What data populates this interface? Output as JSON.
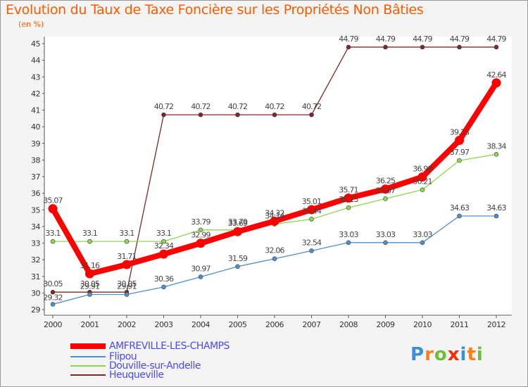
{
  "chart_data": {
    "type": "line",
    "title": "Evolution du Taux de Taxe Foncière sur les Propriétés Non Bâties",
    "ylabel": "(en %)",
    "xlabel": "",
    "x": [
      "2000",
      "2001",
      "2002",
      "2003",
      "2004",
      "2005",
      "2006",
      "2007",
      "2008",
      "2009",
      "2010",
      "2011",
      "2012"
    ],
    "y_ticks": [
      "29",
      "30",
      "31",
      "32",
      "33",
      "34",
      "35",
      "36",
      "37",
      "38",
      "39",
      "40",
      "41",
      "42",
      "43",
      "44",
      "45"
    ],
    "ylim": [
      29,
      45
    ],
    "grid": false,
    "legend_position": "bottom-left",
    "series": [
      {
        "name": "AMFREVILLE-LES-CHAMPS",
        "color": "#ff0000",
        "values": [
          35.07,
          31.16,
          31.71,
          32.34,
          32.99,
          33.69,
          34.32,
          35.01,
          35.71,
          36.25,
          36.98,
          39.18,
          42.64
        ],
        "labels": [
          "35.07",
          "31.16",
          "31.71",
          "32.34",
          "32.99",
          "33.69",
          "34.32",
          "35.01",
          "35.71",
          "36.25",
          "36.98",
          "39.18",
          "42.64"
        ]
      },
      {
        "name": "Flipou",
        "color": "#4f90c9",
        "values": [
          29.32,
          29.91,
          29.91,
          30.36,
          30.97,
          31.59,
          32.06,
          32.54,
          33.03,
          33.03,
          33.03,
          34.63,
          34.63
        ],
        "labels": [
          "29.32",
          "29.91",
          "29.91",
          "30.36",
          "30.97",
          "31.59",
          "32.06",
          "32.54",
          "33.03",
          "33.03",
          "33.03",
          "34.63",
          "34.63"
        ]
      },
      {
        "name": "Douville-sur-Andelle",
        "color": "#8fd552",
        "values": [
          33.1,
          33.1,
          33.1,
          33.1,
          33.79,
          33.79,
          34.14,
          34.44,
          35.13,
          35.67,
          36.21,
          37.97,
          38.34
        ],
        "labels": [
          "33.1",
          "33.1",
          "33.1",
          "33.1",
          "33.79",
          "33.79",
          "34.14",
          "34.44",
          "35.13",
          "35.67",
          "36.21",
          "37.97",
          "38.34"
        ]
      },
      {
        "name": "Heuqueville",
        "color": "#7a2a2a",
        "values": [
          30.05,
          30.05,
          30.05,
          40.72,
          40.72,
          40.72,
          40.72,
          40.72,
          44.79,
          44.79,
          44.79,
          44.79,
          44.79
        ],
        "labels": [
          "30.05",
          "30.05",
          "30.05",
          "40.72",
          "40.72",
          "40.72",
          "40.72",
          "40.72",
          "44.79",
          "44.79",
          "44.79",
          "44.79",
          "44.79"
        ]
      }
    ]
  },
  "logo": {
    "letters": [
      "P",
      "r",
      "o",
      "x",
      "i",
      "t",
      "i"
    ],
    "colors": [
      "#3a8fd8",
      "#ff7f1a",
      "#6cbf3a",
      "#ff2a00",
      "#3a8fd8",
      "#ff7f1a",
      "#6cbf3a"
    ]
  }
}
